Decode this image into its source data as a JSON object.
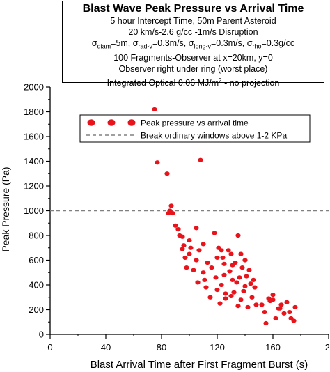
{
  "title_box": {
    "title": "Blast Wave Peak Pressure vs Arrival Time",
    "line1": "5 hour Intercept Time, 50m Parent Asteroid",
    "line2": "20 km/s-2.6 g/cc -1m/s Disruption",
    "sigma_symbol": "σ",
    "line3_parts": [
      {
        "sub": "diam",
        "text": "=5m, "
      },
      {
        "sub": "rad-v",
        "text": "=0.3m/s, "
      },
      {
        "sub": "long-v",
        "text": "=0.3m/s, "
      },
      {
        "sub": "rho",
        "text": "=0.3g/cc"
      }
    ],
    "line4": "100 Fragments-Observer at x=20km, y=0",
    "line5": "Observer right under ring (worst place)",
    "line6_pre": "Integrated Optical 0.06 MJ/m",
    "line6_sup": "2",
    "line6_post": " - no projection"
  },
  "chart_data": {
    "type": "scatter",
    "xlabel": "Blast Arrival Time after First Fragment Burst (s)",
    "ylabel": "Peak Pressure (Pa)",
    "xlim": [
      0,
      200
    ],
    "ylim": [
      0,
      2000
    ],
    "xticks": [
      "0",
      "40",
      "80",
      "120",
      "160",
      "2"
    ],
    "yticks": [
      "0",
      "200",
      "400",
      "600",
      "800",
      "1000",
      "1200",
      "1400",
      "1600",
      "1800",
      "2000"
    ],
    "grid": false,
    "legend_placement": "upper-middle",
    "series": [
      {
        "name": "Peak pressure vs arrival time",
        "color": "#e8141c",
        "x": [
          75,
          77,
          84,
          85,
          86,
          87,
          88,
          90,
          92,
          93,
          95,
          95,
          96,
          97,
          98,
          100,
          100,
          101,
          103,
          105,
          105,
          106,
          107,
          108,
          110,
          110,
          111,
          112,
          113,
          115,
          116,
          118,
          119,
          120,
          120,
          121,
          122,
          123,
          123,
          124,
          125,
          125,
          126,
          126,
          128,
          129,
          130,
          130,
          131,
          131,
          132,
          133,
          134,
          135,
          135,
          136,
          137,
          137,
          138,
          139,
          140,
          140,
          141,
          142,
          143,
          144,
          145,
          146,
          147,
          148,
          152,
          154,
          155,
          157,
          158,
          160,
          162,
          164,
          166,
          168,
          170,
          172,
          173,
          175,
          176,
          160,
          165
        ],
        "y": [
          1820,
          1390,
          1300,
          980,
          1000,
          1040,
          980,
          880,
          850,
          800,
          790,
          690,
          720,
          620,
          540,
          760,
          650,
          700,
          520,
          600,
          860,
          420,
          680,
          1410,
          730,
          500,
          440,
          380,
          580,
          300,
          540,
          820,
          460,
          620,
          360,
          700,
          250,
          680,
          400,
          620,
          570,
          480,
          330,
          290,
          680,
          510,
          650,
          310,
          560,
          440,
          340,
          580,
          420,
          800,
          230,
          460,
          650,
          280,
          540,
          350,
          600,
          390,
          470,
          220,
          520,
          410,
          300,
          440,
          380,
          240,
          240,
          180,
          90,
          290,
          270,
          280,
          130,
          210,
          240,
          170,
          260,
          180,
          130,
          110,
          220,
          320,
          210
        ]
      },
      {
        "name": "Break ordinary windows above 1-2 KPa",
        "color": "#808080",
        "style": "dashed",
        "y_constant": 1000
      }
    ]
  }
}
